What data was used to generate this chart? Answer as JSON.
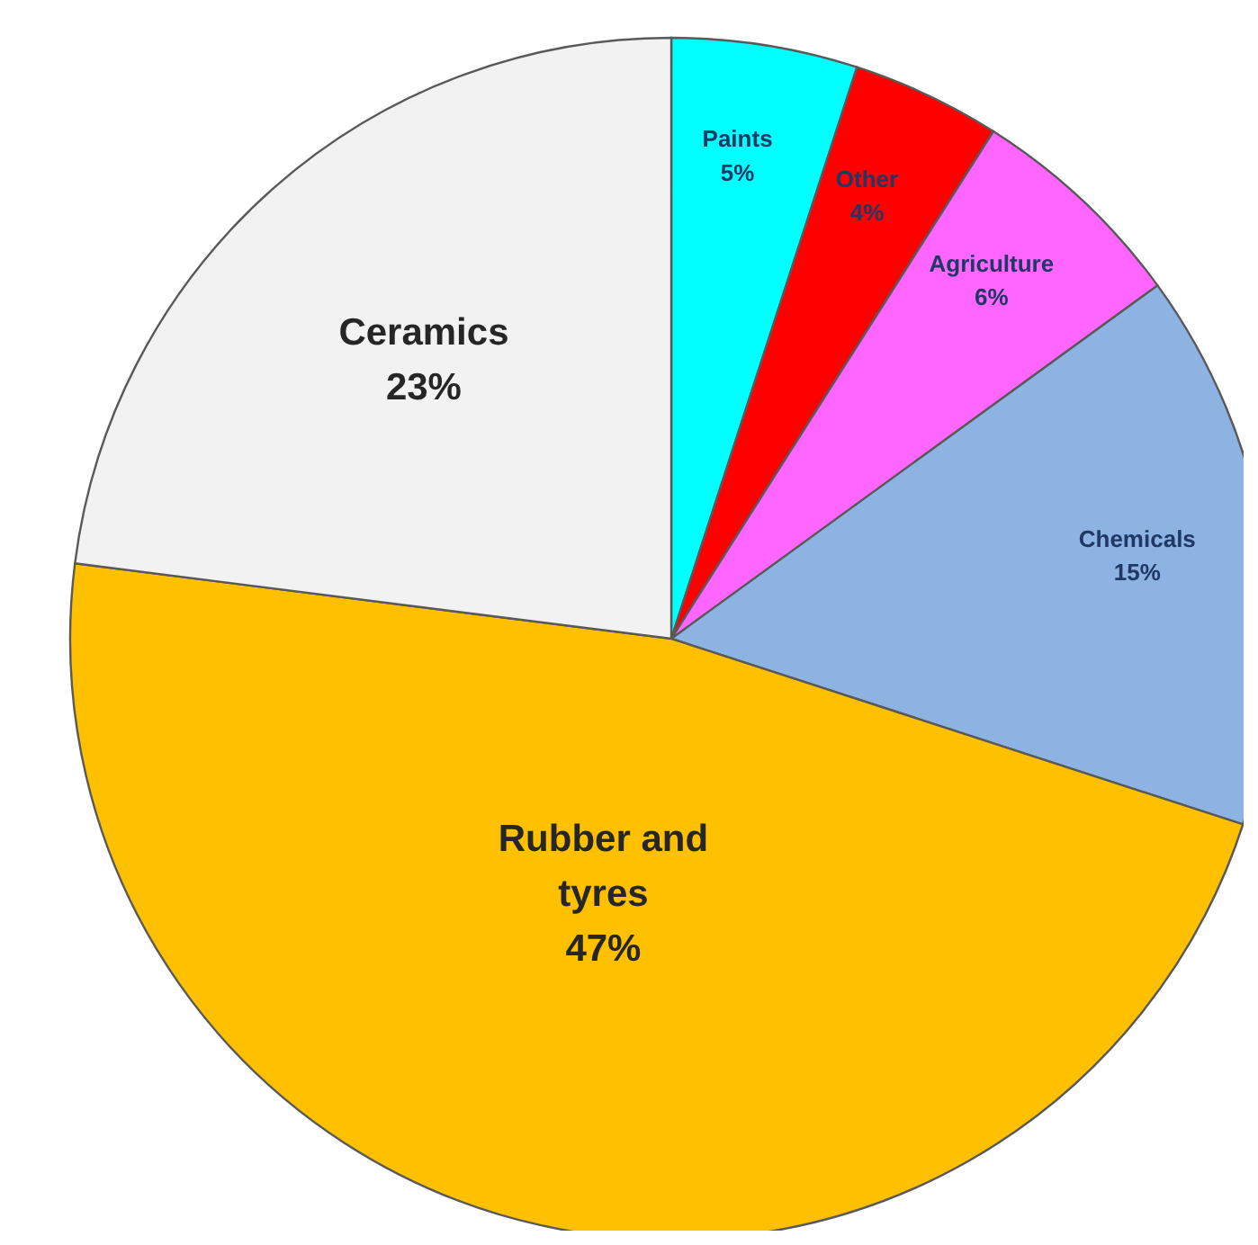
{
  "chart_data": {
    "type": "pie",
    "categories": [
      "Paints",
      "Other",
      "Agriculture",
      "Chemicals",
      "Rubber and tyres",
      "Ceramics"
    ],
    "values": [
      5,
      4,
      6,
      15,
      47,
      23
    ],
    "value_labels": [
      "5%",
      "4%",
      "6%",
      "15%",
      "47%",
      "23%"
    ],
    "colors": [
      "#00ffff",
      "#ff0000",
      "#ff66ff",
      "#8db3e2",
      "#ffc000",
      "#f2f2f2"
    ],
    "legend": false
  }
}
